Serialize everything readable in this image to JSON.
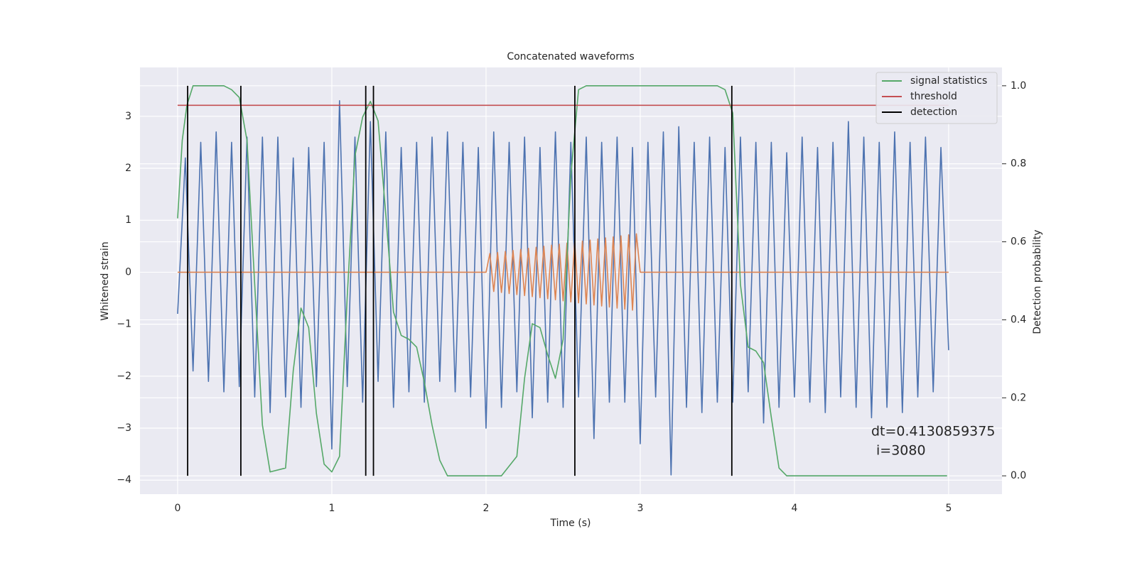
{
  "chart_data": {
    "type": "line",
    "title": "Concatenated waveforms",
    "xlabel": "Time (s)",
    "ylabel": "Whitened strain",
    "y2label": "Detection probability",
    "xlim": [
      -0.244,
      5.346
    ],
    "ylim": [
      -4.27,
      3.94
    ],
    "y2lim": [
      -0.047,
      1.047
    ],
    "xticks": [
      0,
      1,
      2,
      3,
      4,
      5
    ],
    "yticks": [
      {
        "value": -4,
        "label": "−4"
      },
      {
        "value": -3,
        "label": "−3"
      },
      {
        "value": -2,
        "label": "−2"
      },
      {
        "value": -1,
        "label": "−1"
      },
      0,
      1,
      2,
      3
    ],
    "y2ticks": [
      {
        "value": 0,
        "label": "0.0"
      },
      0.2,
      0.4,
      0.6,
      0.8,
      {
        "value": 1,
        "label": "1.0"
      }
    ],
    "grid": true,
    "legend": "upper right",
    "series": [
      {
        "color": "#4c72b0",
        "x": [
          0,
          0.05,
          0.1,
          0.15,
          0.2,
          0.25,
          0.3,
          0.35,
          0.4,
          0.45,
          0.5,
          0.55,
          0.6,
          0.65,
          0.7,
          0.75,
          0.8,
          0.85,
          0.9,
          0.95,
          1,
          1.05,
          1.1,
          1.15,
          1.2,
          1.25,
          1.3,
          1.35,
          1.4,
          1.45,
          1.5,
          1.55,
          1.6,
          1.65,
          1.7,
          1.75,
          1.8,
          1.85,
          1.9,
          1.95,
          2,
          2.05,
          2.1,
          2.15,
          2.2,
          2.25,
          2.3,
          2.35,
          2.4,
          2.45,
          2.5,
          2.55,
          2.6,
          2.65,
          2.7,
          2.75,
          2.8,
          2.85,
          2.9,
          2.95,
          3,
          3.05,
          3.1,
          3.15,
          3.2,
          3.25,
          3.3,
          3.35,
          3.4,
          3.45,
          3.5,
          3.55,
          3.6,
          3.65,
          3.7,
          3.75,
          3.8,
          3.85,
          3.9,
          3.95,
          4,
          4.05,
          4.1,
          4.15,
          4.2,
          4.25,
          4.3,
          4.35,
          4.4,
          4.45,
          4.5,
          4.55,
          4.6,
          4.65,
          4.7,
          4.75,
          4.8,
          4.85,
          4.9,
          4.95,
          5
        ],
        "values": [
          -0.8,
          2.2,
          -1.9,
          2.5,
          -2.1,
          2.7,
          -2.3,
          2.5,
          -2.2,
          2.6,
          -2.4,
          2.6,
          -2.7,
          2.6,
          -2.4,
          2.2,
          -2.6,
          2.4,
          -2.2,
          2.5,
          -3.4,
          3.3,
          -2.2,
          2.6,
          -2.5,
          2.9,
          -2.1,
          2.7,
          -2.6,
          2.4,
          -2.3,
          2.5,
          -2.5,
          2.6,
          -2.1,
          2.7,
          -2.3,
          2.5,
          -2.4,
          2.4,
          -3.0,
          2.7,
          -2.6,
          2.5,
          -2.3,
          2.6,
          -2.8,
          2.4,
          -2.5,
          2.7,
          -2.6,
          2.5,
          -2.4,
          2.6,
          -3.2,
          2.5,
          -2.5,
          2.6,
          -2.5,
          2.4,
          -3.3,
          2.5,
          -2.4,
          2.7,
          -3.9,
          2.8,
          -2.6,
          2.5,
          -2.7,
          2.6,
          -2.5,
          2.4,
          -2.5,
          2.6,
          -2.3,
          2.5,
          -2.9,
          2.5,
          -2.6,
          2.3,
          -2.4,
          2.6,
          -2.5,
          2.4,
          -2.7,
          2.5,
          -2.4,
          2.9,
          -2.6,
          2.6,
          -2.8,
          2.5,
          -2.6,
          2.7,
          -2.7,
          2.5,
          -2.4,
          2.6,
          -2.3,
          2.4,
          -1.5
        ]
      },
      {
        "color": "#dd8452",
        "x": [
          0,
          2,
          2.025,
          2.05,
          2.075,
          2.1,
          2.125,
          2.15,
          2.175,
          2.2,
          2.225,
          2.25,
          2.275,
          2.3,
          2.325,
          2.35,
          2.375,
          2.4,
          2.425,
          2.45,
          2.475,
          2.5,
          2.525,
          2.55,
          2.575,
          2.6,
          2.625,
          2.65,
          2.675,
          2.7,
          2.725,
          2.75,
          2.775,
          2.8,
          2.825,
          2.85,
          2.875,
          2.9,
          2.925,
          2.95,
          2.975,
          3,
          5
        ],
        "values": [
          0,
          0,
          0.36,
          -0.37,
          0.38,
          -0.39,
          0.4,
          -0.41,
          0.42,
          -0.43,
          0.44,
          -0.45,
          0.46,
          -0.47,
          0.48,
          -0.49,
          0.5,
          -0.51,
          0.52,
          -0.53,
          0.54,
          -0.55,
          0.56,
          -0.57,
          0.58,
          -0.59,
          0.6,
          -0.61,
          0.62,
          -0.63,
          0.64,
          -0.65,
          0.66,
          -0.67,
          0.68,
          -0.69,
          0.7,
          -0.71,
          0.72,
          -0.73,
          0.74,
          0,
          0
        ]
      },
      {
        "name": "signal statistics",
        "color": "#55a868",
        "axis": "y2",
        "x": [
          0,
          0.03,
          0.06,
          0.1,
          0.2,
          0.3,
          0.35,
          0.4,
          0.45,
          0.5,
          0.55,
          0.6,
          0.7,
          0.75,
          0.8,
          0.85,
          0.9,
          0.95,
          1,
          1.05,
          1.1,
          1.15,
          1.2,
          1.25,
          1.3,
          1.35,
          1.4,
          1.45,
          1.5,
          1.55,
          1.6,
          1.65,
          1.7,
          1.75,
          2,
          2.1,
          2.2,
          2.25,
          2.3,
          2.35,
          2.4,
          2.45,
          2.5,
          2.55,
          2.6,
          2.65,
          3.5,
          3.55,
          3.6,
          3.65,
          3.7,
          3.75,
          3.8,
          3.85,
          3.9,
          3.95,
          4.99
        ],
        "values": [
          0.66,
          0.86,
          0.95,
          1,
          1,
          1,
          0.99,
          0.97,
          0.86,
          0.49,
          0.13,
          0.01,
          0.02,
          0.27,
          0.43,
          0.38,
          0.16,
          0.03,
          0.01,
          0.05,
          0.46,
          0.82,
          0.92,
          0.96,
          0.91,
          0.67,
          0.42,
          0.36,
          0.35,
          0.33,
          0.24,
          0.13,
          0.04,
          0,
          0,
          0,
          0.05,
          0.25,
          0.39,
          0.38,
          0.31,
          0.25,
          0.35,
          0.77,
          0.99,
          1,
          1,
          0.99,
          0.93,
          0.49,
          0.33,
          0.32,
          0.29,
          0.15,
          0.02,
          0,
          0
        ]
      },
      {
        "name": "threshold",
        "color": "#c44e52",
        "axis": "y2",
        "x": [
          0,
          5
        ],
        "values": [
          0.95,
          0.95
        ]
      },
      {
        "name": "detection",
        "color": "#000000",
        "axis": "y2",
        "type": "vlines",
        "x": [
          0.065,
          0.41,
          1.22,
          1.27,
          2.576,
          3.594
        ],
        "ymin": 0,
        "ymax": 1
      }
    ],
    "annotations": [
      "dt=0.4130859375",
      "i=3080"
    ]
  }
}
